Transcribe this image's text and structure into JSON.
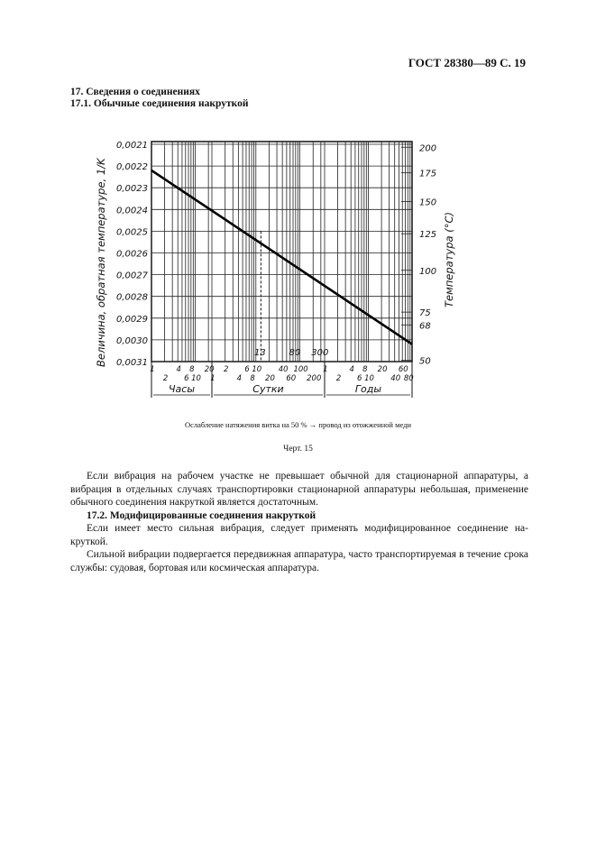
{
  "header": "ГОСТ 28380—89 С. 19",
  "section_title": "17.  Сведения о соединениях",
  "subsection_title": "17.1.  Обычные соединения накруткой",
  "chart_data": {
    "type": "line",
    "ylabel": "Величина, обратная температуре, 1/K",
    "ylabel_right": "Температура (°C)",
    "y_ticks": [
      "0,0021",
      "0,0022",
      "0,0023",
      "0,0024",
      "0,0025",
      "0,0026",
      "0,0027",
      "0,0028",
      "0,0029",
      "0,0030",
      "0,0031"
    ],
    "ylim": [
      0.0021,
      0.0031
    ],
    "y_right_ticks": [
      {
        "label": "200",
        "value": 200
      },
      {
        "label": "175",
        "value": 175
      },
      {
        "label": "150",
        "value": 150
      },
      {
        "label": "125",
        "value": 125
      },
      {
        "label": "100",
        "value": 100
      },
      {
        "label": "75",
        "value": 75
      },
      {
        "label": "68",
        "value": 68
      },
      {
        "label": "50",
        "value": 50
      }
    ],
    "x_groups": [
      {
        "name": "Часы",
        "ticks": [
          "1",
          "2",
          "4",
          "6",
          "8",
          "10",
          "20"
        ]
      },
      {
        "name": "Сутки",
        "ticks": [
          "1",
          "2",
          "4",
          "6",
          "8",
          "10",
          "20",
          "40",
          "60",
          "100",
          "200"
        ]
      },
      {
        "name": "Годы",
        "ticks": [
          "1",
          "2",
          "4",
          "6",
          "8",
          "10",
          "20",
          "40",
          "60",
          "80"
        ]
      }
    ],
    "annotations": [
      "13",
      "80",
      "300"
    ],
    "series": [
      {
        "points": [
          {
            "x": "1 час",
            "y": 0.00222
          },
          {
            "x": "13 суток",
            "y": 0.0025
          },
          {
            "x": "300 суток",
            "y": 0.0027
          },
          {
            "x": "100 лет",
            "y": 0.00302
          }
        ]
      }
    ],
    "grid": true
  },
  "caption": "Ослабление натяжения витка на 50 % → провод из отожженной меди",
  "figure_label": "Черт. 15",
  "paragraph1": "Если вибрация на рабочем участке не превышает обычной для стационарной аппаратуры, а вибрация в отдельных случаях транспортировки стационарной аппаратуры небольшая, применение обычного соединения накруткой является достаточным.",
  "subsection2_title": "17.2.  Модифицированные соединения накруткой",
  "paragraph2": "Если имеет место сильная вибрация, следует применять модифицированное соединение на-круткой.",
  "paragraph3": "Сильной вибрации подвергается передвижная аппаратура, часто транспортируемая в течение срока службы: судовая, бортовая или космическая аппаратура."
}
